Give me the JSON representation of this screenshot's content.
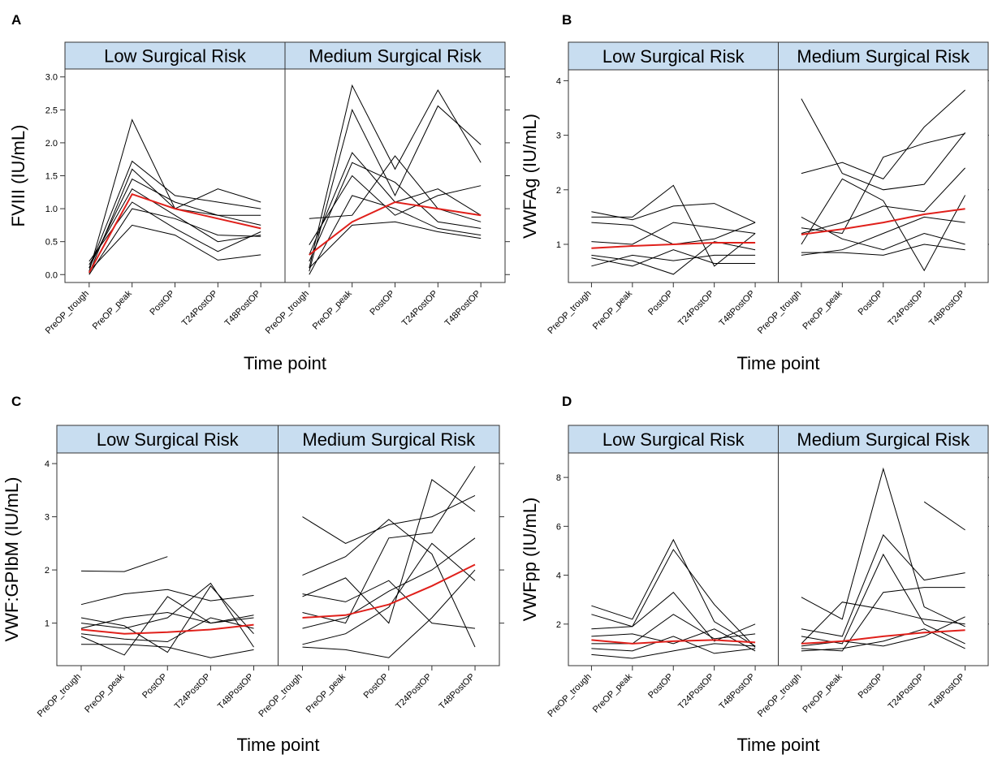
{
  "chart_data": [
    {
      "type": "line",
      "label": "A",
      "ylabel": "FVIII (IU/mL)",
      "xlabel": "Time point",
      "categories": [
        "PreOP_trough",
        "PreOP_peak",
        "PostOP",
        "T24PostOP",
        "T48PostOP"
      ],
      "ylim": [
        -0.12,
        3.12
      ],
      "yticks": [
        {
          "value": 0,
          "label": "0.0"
        },
        0.5,
        {
          "value": 1,
          "label": "1.0"
        },
        1.5,
        {
          "value": 2,
          "label": "2.0"
        },
        2.5,
        {
          "value": 3,
          "label": "3.0"
        }
      ],
      "facets": [
        {
          "title": "Low Surgical Risk",
          "series": [
            {
              "color": "#000000",
              "values": [
                0.05,
                2.35,
                1.0,
                0.9,
                0.75
              ]
            },
            {
              "color": "#000000",
              "values": [
                0.1,
                1.72,
                1.2,
                1.1,
                1.0
              ]
            },
            {
              "color": "#000000",
              "values": [
                0.02,
                1.6,
                1.0,
                1.3,
                1.1
              ]
            },
            {
              "color": "#000000",
              "values": [
                0.15,
                1.3,
                0.9,
                0.5,
                0.6
              ]
            },
            {
              "color": "#000000",
              "values": [
                0.2,
                1.1,
                0.7,
                0.35,
                0.65
              ]
            },
            {
              "color": "#000000",
              "values": [
                0.05,
                0.75,
                0.6,
                0.22,
                0.3
              ]
            },
            {
              "color": "#000000",
              "values": [
                0.1,
                1.45,
                1.1,
                0.9,
                0.9
              ]
            },
            {
              "color": "#000000",
              "values": [
                0.0,
                1.0,
                0.85,
                0.6,
                0.58
              ]
            },
            {
              "color": "#e0201b",
              "values": [
                0.03,
                1.22,
                1.0,
                0.85,
                0.7
              ]
            }
          ]
        },
        {
          "title": "Medium Surgical Risk",
          "series": [
            {
              "color": "#000000",
              "values": [
                0.1,
                2.87,
                1.6,
                2.8,
                1.7
              ]
            },
            {
              "color": "#000000",
              "values": [
                0.05,
                2.5,
                1.2,
                2.56,
                1.97
              ]
            },
            {
              "color": "#000000",
              "values": [
                0.3,
                1.85,
                1.1,
                1.3,
                0.9
              ]
            },
            {
              "color": "#000000",
              "values": [
                0.85,
                0.9,
                1.8,
                1.0,
                0.8
              ]
            },
            {
              "color": "#000000",
              "values": [
                0.2,
                1.7,
                1.4,
                0.8,
                0.7
              ]
            },
            {
              "color": "#000000",
              "values": [
                0.0,
                1.2,
                1.0,
                0.7,
                0.6
              ]
            },
            {
              "color": "#000000",
              "values": [
                0.45,
                1.5,
                0.9,
                1.2,
                1.35
              ]
            },
            {
              "color": "#000000",
              "values": [
                0.1,
                0.75,
                0.8,
                0.65,
                0.55
              ]
            },
            {
              "color": "#e0201b",
              "values": [
                0.3,
                0.8,
                1.1,
                1.0,
                0.9
              ]
            }
          ]
        }
      ]
    },
    {
      "type": "line",
      "label": "B",
      "ylabel": "VWFAg (IU/mL)",
      "xlabel": "Time point",
      "categories": [
        "PreOP_trough",
        "PreOP_peak",
        "PostOP",
        "T24PostOP",
        "T48PostOP"
      ],
      "ylim": [
        0.3,
        4.2
      ],
      "yticks": [
        1,
        2,
        3,
        4
      ],
      "facets": [
        {
          "title": "Low Surgical Risk",
          "series": [
            {
              "color": "#000000",
              "values": [
                1.6,
                1.45,
                1.7,
                1.75,
                1.4
              ]
            },
            {
              "color": "#000000",
              "values": [
                1.5,
                1.5,
                2.08,
                0.6,
                1.2
              ]
            },
            {
              "color": "#000000",
              "values": [
                1.4,
                1.35,
                1.0,
                1.1,
                1.4
              ]
            },
            {
              "color": "#000000",
              "values": [
                0.8,
                0.7,
                0.45,
                1.05,
                0.9
              ]
            },
            {
              "color": "#000000",
              "values": [
                0.75,
                0.6,
                0.9,
                0.65,
                0.65
              ]
            },
            {
              "color": "#000000",
              "values": [
                1.05,
                1.0,
                1.4,
                1.3,
                1.2
              ]
            },
            {
              "color": "#000000",
              "values": [
                0.6,
                0.8,
                0.7,
                0.8,
                0.8
              ]
            },
            {
              "color": "#e0201b",
              "values": [
                0.93,
                0.97,
                1.0,
                1.03,
                1.03
              ]
            }
          ]
        },
        {
          "title": "Medium Surgical Risk",
          "series": [
            {
              "color": "#000000",
              "values": [
                3.67,
                2.3,
                2.0,
                2.1,
                3.05
              ]
            },
            {
              "color": "#000000",
              "values": [
                2.3,
                2.5,
                2.2,
                3.15,
                3.83
              ]
            },
            {
              "color": "#000000",
              "values": [
                1.3,
                1.2,
                2.6,
                2.85,
                3.03
              ]
            },
            {
              "color": "#000000",
              "values": [
                1.0,
                2.2,
                1.8,
                0.52,
                1.9
              ]
            },
            {
              "color": "#000000",
              "values": [
                0.8,
                0.9,
                1.2,
                1.5,
                1.4
              ]
            },
            {
              "color": "#000000",
              "values": [
                1.5,
                1.1,
                0.9,
                1.2,
                1.0
              ]
            },
            {
              "color": "#000000",
              "values": [
                0.85,
                0.85,
                0.8,
                1.0,
                0.9
              ]
            },
            {
              "color": "#000000",
              "values": [
                1.2,
                1.4,
                1.7,
                1.6,
                2.4
              ]
            },
            {
              "color": "#e0201b",
              "values": [
                1.18,
                1.28,
                1.4,
                1.55,
                1.65
              ]
            }
          ]
        }
      ]
    },
    {
      "type": "line",
      "label": "C",
      "ylabel": "VWF:GPIbM (IU/mL)",
      "xlabel": "Time point",
      "categories": [
        "PreOP_trough",
        "PreOP_peak",
        "PostOP",
        "T24PostOP",
        "T48PostOP"
      ],
      "ylim": [
        0.2,
        4.2
      ],
      "yticks": [
        1,
        2,
        3,
        4
      ],
      "facets": [
        {
          "title": "Low Surgical Risk",
          "series": [
            {
              "color": "#000000",
              "values": [
                1.98,
                1.97,
                2.25,
                null,
                null
              ]
            },
            {
              "color": "#000000",
              "values": [
                1.35,
                1.55,
                1.63,
                1.42,
                1.52
              ]
            },
            {
              "color": "#000000",
              "values": [
                1.0,
                0.9,
                1.1,
                1.75,
                0.55
              ]
            },
            {
              "color": "#000000",
              "values": [
                0.75,
                0.4,
                1.5,
                1.0,
                1.15
              ]
            },
            {
              "color": "#000000",
              "values": [
                0.6,
                0.6,
                0.55,
                0.35,
                0.5
              ]
            },
            {
              "color": "#000000",
              "values": [
                0.9,
                1.1,
                1.2,
                1.0,
                1.1
              ]
            },
            {
              "color": "#000000",
              "values": [
                0.8,
                0.7,
                0.65,
                1.1,
                0.9
              ]
            },
            {
              "color": "#000000",
              "values": [
                1.1,
                0.95,
                0.45,
                1.7,
                0.8
              ]
            },
            {
              "color": "#e0201b",
              "values": [
                0.88,
                0.8,
                0.83,
                0.88,
                0.97
              ]
            }
          ]
        },
        {
          "title": "Medium Surgical Risk",
          "series": [
            {
              "color": "#000000",
              "values": [
                3.0,
                2.5,
                2.85,
                3.0,
                3.4
              ]
            },
            {
              "color": "#000000",
              "values": [
                1.9,
                2.25,
                2.95,
                2.3,
                0.55
              ]
            },
            {
              "color": "#000000",
              "values": [
                1.5,
                1.85,
                1.0,
                3.7,
                3.1
              ]
            },
            {
              "color": "#000000",
              "values": [
                1.2,
                1.0,
                2.6,
                2.7,
                3.95
              ]
            },
            {
              "color": "#000000",
              "values": [
                0.6,
                0.8,
                1.3,
                2.5,
                1.8
              ]
            },
            {
              "color": "#000000",
              "values": [
                0.55,
                0.5,
                0.35,
                1.1,
                2.0
              ]
            },
            {
              "color": "#000000",
              "values": [
                1.55,
                1.4,
                1.8,
                1.0,
                0.9
              ]
            },
            {
              "color": "#000000",
              "values": [
                0.9,
                1.1,
                1.6,
                2.0,
                2.6
              ]
            },
            {
              "color": "#e0201b",
              "values": [
                1.1,
                1.15,
                1.35,
                1.7,
                2.1
              ]
            }
          ]
        }
      ]
    },
    {
      "type": "line",
      "label": "D",
      "ylabel": "VWFpp (IU/mL)",
      "xlabel": "Time point",
      "categories": [
        "PreOP_trough",
        "PreOP_peak",
        "PostOP",
        "T24PostOP",
        "T48PostOP"
      ],
      "ylim": [
        0.3,
        9.0
      ],
      "yticks": [
        2,
        4,
        6,
        8
      ],
      "facets": [
        {
          "title": "Low Surgical Risk",
          "series": [
            {
              "color": "#000000",
              "values": [
                2.75,
                2.2,
                5.45,
                2.1,
                1.1
              ]
            },
            {
              "color": "#000000",
              "values": [
                2.4,
                1.9,
                5.05,
                2.8,
                1.05
              ]
            },
            {
              "color": "#000000",
              "values": [
                1.8,
                1.9,
                3.3,
                1.3,
                2.0
              ]
            },
            {
              "color": "#000000",
              "values": [
                1.2,
                1.2,
                2.4,
                1.4,
                1.6
              ]
            },
            {
              "color": "#000000",
              "values": [
                1.0,
                0.9,
                1.5,
                0.8,
                1.0
              ]
            },
            {
              "color": "#000000",
              "values": [
                0.75,
                0.6,
                0.9,
                1.2,
                1.1
              ]
            },
            {
              "color": "#000000",
              "values": [
                1.5,
                1.6,
                1.2,
                1.8,
                0.9
              ]
            },
            {
              "color": "#e0201b",
              "values": [
                1.35,
                1.2,
                1.3,
                1.35,
                1.25
              ]
            }
          ]
        },
        {
          "title": "Medium Surgical Risk",
          "series": [
            {
              "color": "#000000",
              "values": [
                3.1,
                2.2,
                8.35,
                2.7,
                1.9
              ]
            },
            {
              "color": "#000000",
              "values": [
                1.8,
                1.5,
                5.65,
                3.8,
                4.1
              ]
            },
            {
              "color": "#000000",
              "values": [
                1.5,
                1.2,
                4.85,
                2.0,
                1.2
              ]
            },
            {
              "color": "#000000",
              "values": [
                1.0,
                0.9,
                3.3,
                3.5,
                3.5
              ]
            },
            {
              "color": "#000000",
              "values": [
                1.2,
                2.9,
                2.6,
                2.2,
                2.0
              ]
            },
            {
              "color": "#000000",
              "values": [
                0.9,
                1.0,
                1.3,
                1.8,
                1.0
              ]
            },
            {
              "color": "#000000",
              "values": [
                null,
                null,
                null,
                7.0,
                5.85
              ]
            },
            {
              "color": "#000000",
              "values": [
                1.1,
                1.3,
                1.1,
                1.5,
                2.3
              ]
            },
            {
              "color": "#e0201b",
              "values": [
                1.2,
                1.3,
                1.5,
                1.65,
                1.75
              ]
            }
          ]
        }
      ]
    }
  ]
}
